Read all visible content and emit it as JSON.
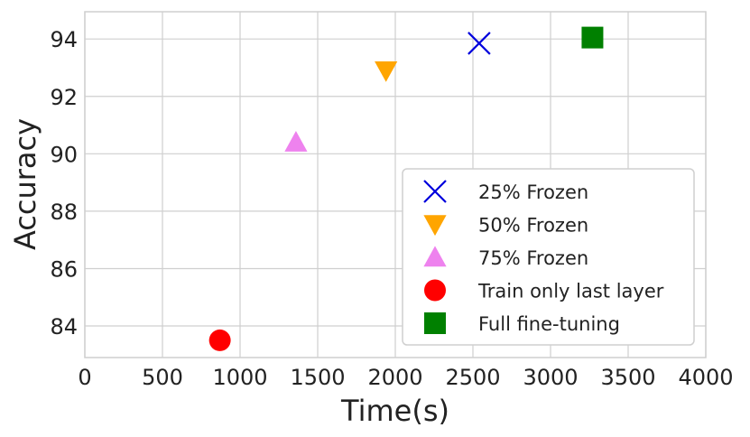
{
  "chart_data": {
    "type": "scatter",
    "title": "",
    "xlabel": "Time(s)",
    "ylabel": "Accuracy",
    "xlim": [
      0,
      4000
    ],
    "ylim": [
      82.9,
      94.95
    ],
    "x_ticks": [
      0,
      500,
      1000,
      1500,
      2000,
      2500,
      3000,
      3500,
      4000
    ],
    "y_ticks": [
      84,
      86,
      88,
      90,
      92,
      94
    ],
    "grid": true,
    "legend_position": "lower-right",
    "series": [
      {
        "name": "25% Frozen",
        "marker": "x",
        "color": "#0000dd",
        "x": 2540,
        "y": 93.85
      },
      {
        "name": "50% Frozen",
        "marker": "triangle-down",
        "color": "#ffa500",
        "x": 1940,
        "y": 92.9
      },
      {
        "name": "75% Frozen",
        "marker": "triangle-up",
        "color": "#ee82ee",
        "x": 1360,
        "y": 90.4
      },
      {
        "name": "Train only last layer",
        "marker": "circle",
        "color": "#ff0000",
        "x": 870,
        "y": 83.5
      },
      {
        "name": "Full fine-tuning",
        "marker": "square",
        "color": "#008000",
        "x": 3270,
        "y": 94.05
      }
    ]
  }
}
